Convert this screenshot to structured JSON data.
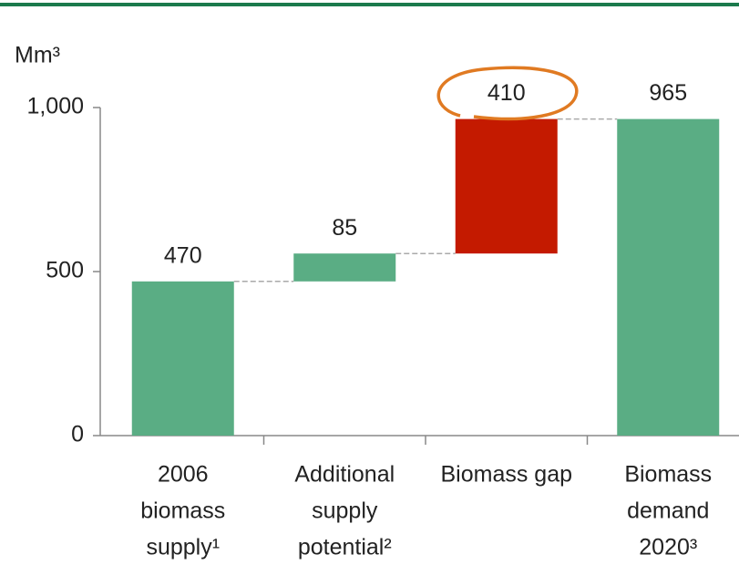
{
  "chart_data": {
    "type": "waterfall",
    "y_label": "Mm³",
    "categories": [
      [
        "2006",
        "biomass",
        "supply¹"
      ],
      [
        "Additional",
        "supply",
        "potential²"
      ],
      [
        "Biomass gap"
      ],
      [
        "Biomass",
        "demand",
        "2020³"
      ]
    ],
    "values": [
      470,
      85,
      410,
      965
    ],
    "measure": [
      "absolute",
      "relative",
      "relative",
      "total"
    ],
    "colors": [
      "#5aad84",
      "#5aad84",
      "#c41a00",
      "#5aad84"
    ],
    "ylim": [
      0,
      1000
    ],
    "yticks": [
      0,
      500,
      {
        "value": 1000,
        "label": "1,000"
      }
    ]
  }
}
